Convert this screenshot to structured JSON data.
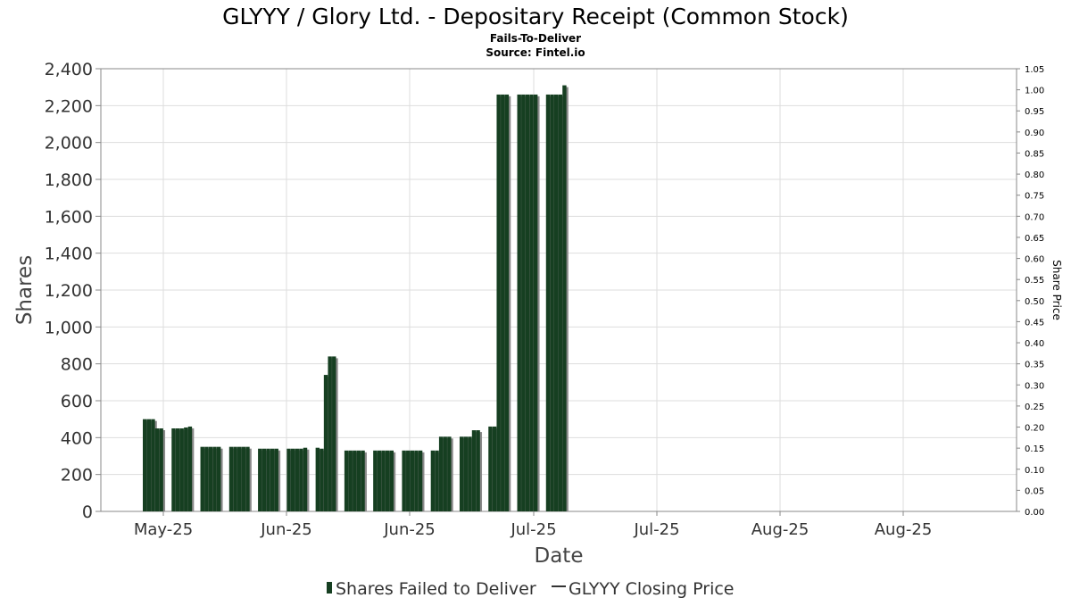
{
  "chart_data": {
    "type": "bar",
    "title": "GLYYY / Glory Ltd. - Depositary Receipt (Common Stock)",
    "subtitle_lines": [
      "Fails-To-Deliver",
      "Source: Fintel.io"
    ],
    "xlabel": "Date",
    "ylabel": "Shares",
    "y2label": "Share Price",
    "ylim": [
      0,
      2400
    ],
    "y_ticks": [
      "0",
      "200",
      "400",
      "600",
      "800",
      "1,000",
      "1,200",
      "1,400",
      "1,600",
      "1,800",
      "2,000",
      "2,200",
      "2,400"
    ],
    "y2lim": [
      0,
      1.05
    ],
    "y2_ticks": [
      "0.00",
      "0.05",
      "0.10",
      "0.15",
      "0.20",
      "0.25",
      "0.30",
      "0.35",
      "0.40",
      "0.45",
      "0.50",
      "0.55",
      "0.60",
      "0.65",
      "0.70",
      "0.75",
      "0.80",
      "0.85",
      "0.90",
      "0.95",
      "1.00",
      "1.05"
    ],
    "x_ticks": [
      "May-25",
      "Jun-25",
      "Jun-25",
      "Jul-25",
      "Jul-25",
      "Aug-25",
      "Aug-25"
    ],
    "grid": true,
    "legend_position": "bottom",
    "colors": {
      "bar": "#163f21",
      "shadow": "#8a8a8a",
      "grid": "#dddddd",
      "axis": "#888888"
    },
    "series": [
      {
        "name": "Shares Failed to Deliver",
        "values": [
          500,
          500,
          500,
          450,
          450,
          450,
          450,
          450,
          455,
          460,
          350,
          350,
          350,
          350,
          350,
          350,
          350,
          350,
          350,
          350,
          340,
          340,
          340,
          340,
          340,
          340,
          340,
          340,
          340,
          345,
          345,
          340,
          740,
          840,
          840,
          330,
          330,
          330,
          330,
          330,
          330,
          330,
          330,
          330,
          330,
          330,
          330,
          330,
          330,
          330,
          330,
          330,
          405,
          405,
          405,
          405,
          405,
          405,
          440,
          440,
          460,
          460,
          2260,
          2260,
          2260,
          2260,
          2260,
          2260,
          2260,
          2260,
          2260,
          2260,
          2260,
          2260,
          2310
        ]
      },
      {
        "name": "GLYYY Closing Price",
        "values": []
      }
    ]
  },
  "legend": {
    "items": [
      {
        "label": "Shares Failed to Deliver",
        "color": "#163f21"
      },
      {
        "label": "GLYYY Closing Price",
        "color": "#333333"
      }
    ]
  }
}
